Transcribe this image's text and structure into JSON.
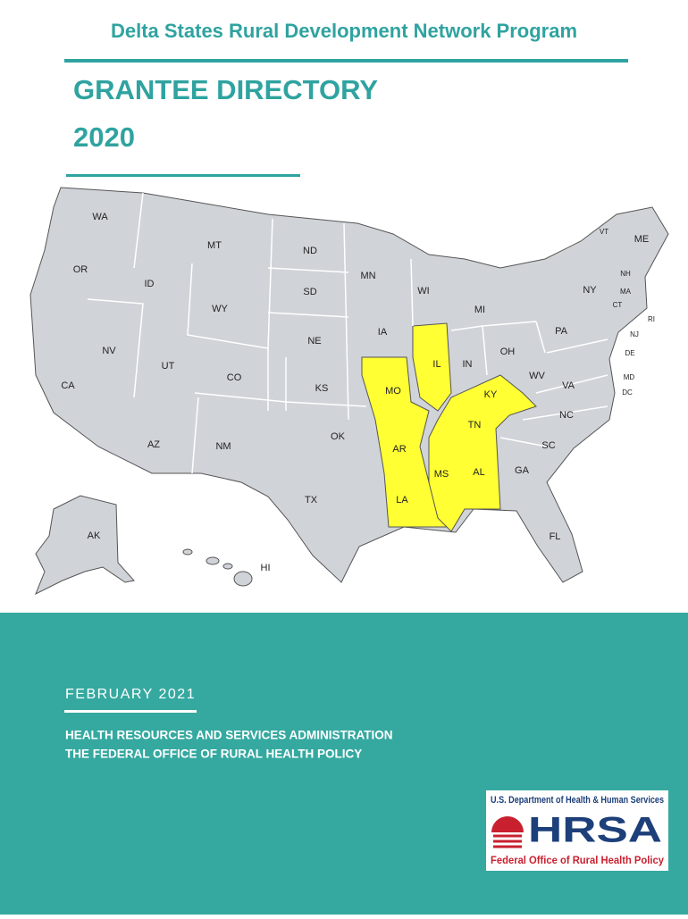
{
  "header": {
    "program": "Delta States Rural Development Network Program",
    "title": "GRANTEE DIRECTORY",
    "year": "2020"
  },
  "map": {
    "state_labels": [
      "WA",
      "OR",
      "CA",
      "NV",
      "ID",
      "MT",
      "WY",
      "UT",
      "CO",
      "AZ",
      "NM",
      "ND",
      "SD",
      "NE",
      "KS",
      "OK",
      "TX",
      "MN",
      "IA",
      "MO",
      "AR",
      "LA",
      "WI",
      "IL",
      "MI",
      "IN",
      "OH",
      "KY",
      "TN",
      "MS",
      "AL",
      "GA",
      "FL",
      "SC",
      "NC",
      "VA",
      "WV",
      "PA",
      "NY",
      "VT",
      "ME",
      "NH",
      "MA",
      "CT",
      "RI",
      "NJ",
      "DE",
      "MD",
      "DC",
      "AK",
      "HI"
    ]
  },
  "footer": {
    "date": "FEBRUARY 2021",
    "org_line_1": "HEALTH RESOURCES AND SERVICES ADMINISTRATION",
    "org_line_2": "THE FEDERAL OFFICE OF RURAL HEALTH POLICY"
  },
  "logo": {
    "department": "U.S. Department of Health & Human Services",
    "acronym": "HRSA",
    "office": "Federal Office of Rural Health Policy"
  }
}
